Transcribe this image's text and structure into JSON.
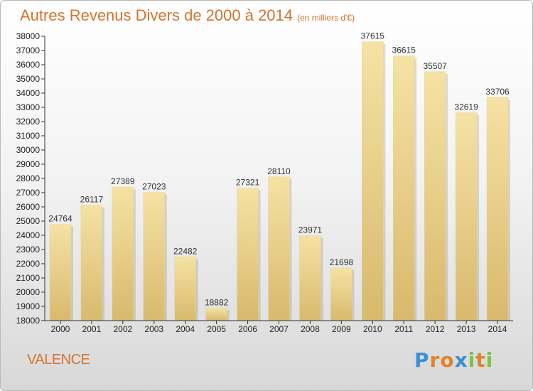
{
  "header": {
    "title": "Autres Revenus Divers de 2000 à 2014",
    "unit": "(en milliers d'€)"
  },
  "footer": {
    "city": "VALENCE",
    "logo_letters": [
      "P",
      "r",
      "o",
      "x",
      "i",
      "t",
      "i"
    ],
    "logo_colors": [
      "#3a8fd6",
      "#e0832a",
      "#e0832a",
      "#3a8fd6",
      "#7cc242",
      "#e0832a",
      "#7cc242"
    ]
  },
  "colors": {
    "title": "#d4732f",
    "bar_light": "#f6e2a4",
    "bar_dark": "#d8b96d",
    "axis": "#333333"
  },
  "chart_data": {
    "type": "bar",
    "categories": [
      "2000",
      "2001",
      "2002",
      "2003",
      "2004",
      "2005",
      "2006",
      "2007",
      "2008",
      "2009",
      "2010",
      "2011",
      "2012",
      "2013",
      "2014"
    ],
    "values": [
      24764,
      26117,
      27389,
      27023,
      22482,
      18882,
      27321,
      28110,
      23971,
      21698,
      37615,
      36615,
      35507,
      32619,
      33706
    ],
    "ylim": [
      18000,
      38000
    ],
    "yticks": [
      18000,
      19000,
      20000,
      21000,
      22000,
      23000,
      24000,
      25000,
      26000,
      27000,
      28000,
      29000,
      30000,
      31000,
      32000,
      33000,
      34000,
      35000,
      36000,
      37000,
      38000
    ],
    "xlabel": "",
    "ylabel": "",
    "grid": false,
    "legend": "none"
  }
}
